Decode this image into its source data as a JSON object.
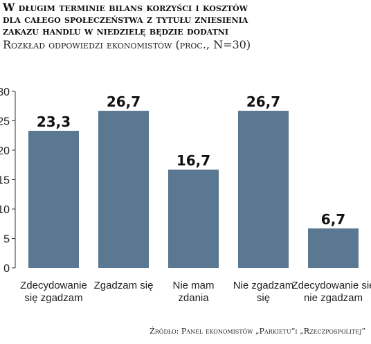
{
  "header": {
    "title_lines": [
      "W długim terminie bilans korzyści i kosztów",
      "dla całego społeczeństwa z tytułu zniesienia",
      "zakazu handlu w niedzielę będzie dodatni"
    ],
    "subtitle": "Rozkład odpowiedzi ekonomistów (proc., N=30)"
  },
  "footer": {
    "source": "Źródło: Panel ekonomistów „Parkietu”i „Rzeczpospolitej”"
  },
  "chart_data": {
    "type": "bar",
    "title": "W długim terminie bilans korzyści i kosztów dla całego społeczeństwa z tytułu zniesienia zakazu handlu w niedzielę będzie dodatni",
    "subtitle": "Rozkład odpowiedzi ekonomistów (proc., N=30)",
    "categories": [
      [
        "Zdecydowanie",
        "się zgadzam"
      ],
      [
        "Zgadzam się"
      ],
      [
        "Nie mam",
        "zdania"
      ],
      [
        "Nie zgadzam",
        "się"
      ],
      [
        "Zdecydowanie się",
        "nie zgadzam"
      ]
    ],
    "values": [
      23.3,
      26.7,
      16.7,
      26.7,
      6.7
    ],
    "value_labels": [
      "23,3",
      "26,7",
      "16,7",
      "26,7",
      "6,7"
    ],
    "y_ticks": [
      0,
      5,
      10,
      15,
      20,
      25,
      30
    ],
    "ylim": [
      0,
      30
    ],
    "grid": false,
    "legend": false,
    "bar_color": "#5a7891",
    "xlabel": "",
    "ylabel": ""
  }
}
